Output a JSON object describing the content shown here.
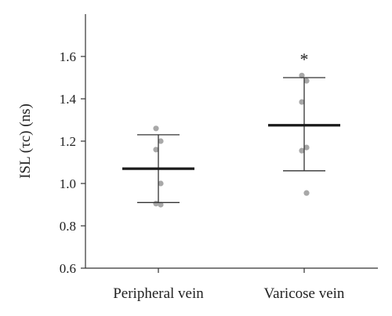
{
  "chart_data": {
    "type": "scatter",
    "title": "",
    "ylabel": "ISL (τc) (ns)",
    "xlabel": "",
    "ylim": [
      0.6,
      1.8
    ],
    "yticks": [
      "0.6",
      "0.8",
      "1.0",
      "1.2",
      "1.4",
      "1.6"
    ],
    "categories": [
      "Peripheral vein",
      "Varicose vein"
    ],
    "groups": [
      {
        "category": "Peripheral vein",
        "mean": 1.07,
        "error_low": 0.91,
        "error_high": 1.23,
        "points": [
          1.26,
          1.2,
          1.16,
          1.0,
          0.905,
          0.9
        ],
        "significance": ""
      },
      {
        "category": "Varicose vein",
        "mean": 1.275,
        "error_low": 1.06,
        "error_high": 1.5,
        "points": [
          1.51,
          1.485,
          1.385,
          1.17,
          1.155,
          0.955
        ],
        "significance": "*"
      }
    ],
    "colors": {
      "points": "#a8a8a8",
      "mean_line": "#1a1a1a",
      "error_bar": "#333333",
      "axis": "#333333"
    },
    "grid": false,
    "legend": "none"
  }
}
